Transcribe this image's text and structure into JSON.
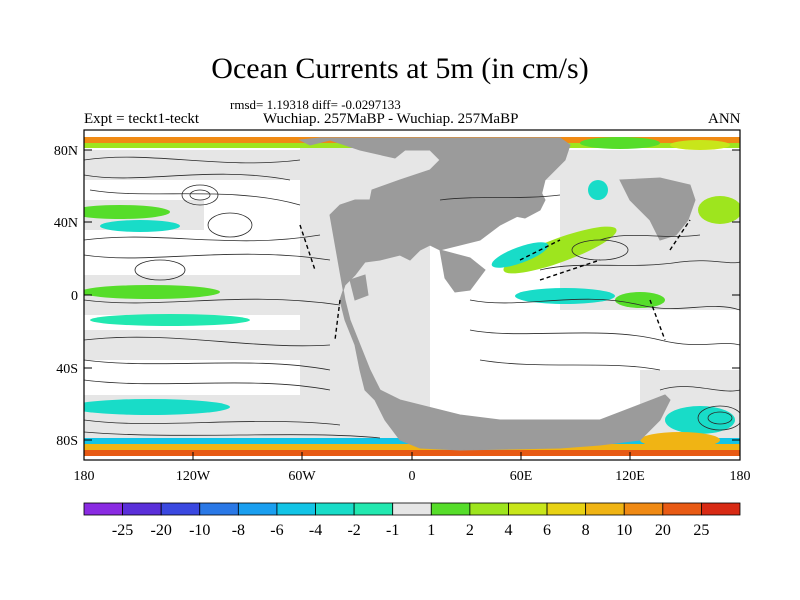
{
  "title": "Ocean Currents at 5m (in cm/s)",
  "stats_text": "rmsd= 1.19318 diff= -0.0297133",
  "left_label": "Expt = teckt1-teckt",
  "center_label": "Wuchiap. 257MaBP - Wuchiap. 257MaBP",
  "right_label": "ANN",
  "y_ticks": [
    "80N",
    "40N",
    "0",
    "40S",
    "80S"
  ],
  "x_ticks": [
    "180",
    "120W",
    "60W",
    "0",
    "60E",
    "120E",
    "180"
  ],
  "colorbar": {
    "labels": [
      "-25",
      "-20",
      "-10",
      "-8",
      "-6",
      "-4",
      "-2",
      "-1",
      "1",
      "2",
      "4",
      "6",
      "8",
      "10",
      "20",
      "25"
    ],
    "colors": [
      "#8a2be2",
      "#5a2fd9",
      "#3a48e0",
      "#2a78e6",
      "#1a9ff0",
      "#12c4e6",
      "#18dcc8",
      "#22e8b0",
      "#e6e6e6",
      "#56dd2a",
      "#9ee51e",
      "#c8e61a",
      "#e8d214",
      "#f0b414",
      "#f08a14",
      "#e85a14",
      "#d82a14"
    ]
  },
  "colors": {
    "land": "#9b9b9b",
    "ocean_light": "#e6e6e6",
    "border": "#000000"
  }
}
